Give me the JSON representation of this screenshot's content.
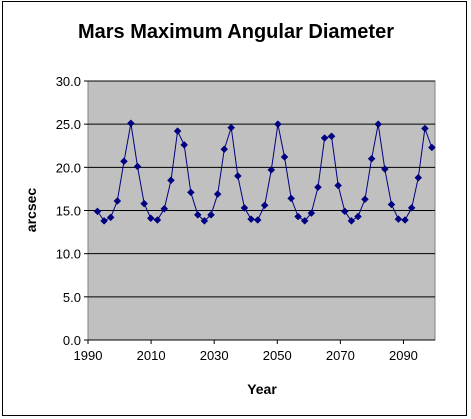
{
  "chart_data": {
    "type": "line",
    "title": "Mars Maximum Angular Diameter",
    "xlabel": "Year",
    "ylabel": "arcsec",
    "xlim": [
      1990,
      2100
    ],
    "ylim": [
      0,
      30
    ],
    "x_ticks": [
      1990,
      2010,
      2030,
      2050,
      2070,
      2090
    ],
    "x_tick_labels": [
      "1990",
      "2010",
      "2030",
      "2050",
      "2070",
      "2090"
    ],
    "y_ticks": [
      0,
      5,
      10,
      15,
      20,
      25,
      30
    ],
    "y_tick_labels": [
      "0.0",
      "5.0",
      "10.0",
      "15.0",
      "20.0",
      "25.0",
      "30.0"
    ],
    "grid": "horizontal",
    "legend": "none",
    "plot_background": "#c0c0c0",
    "series_color": "#000080",
    "marker": "diamond",
    "x": [
      1993.0,
      1995.1,
      1997.2,
      1999.3,
      2001.4,
      2003.6,
      2005.7,
      2007.8,
      2009.9,
      2012.0,
      2014.2,
      2016.3,
      2018.4,
      2020.5,
      2022.6,
      2024.8,
      2026.9,
      2029.0,
      2031.1,
      2033.2,
      2035.4,
      2037.5,
      2039.6,
      2041.7,
      2043.8,
      2046.0,
      2048.1,
      2050.2,
      2052.3,
      2054.4,
      2056.6,
      2058.7,
      2060.8,
      2062.9,
      2065.0,
      2067.2,
      2069.3,
      2071.4,
      2073.5,
      2075.6,
      2077.8,
      2079.9,
      2082.0,
      2084.1,
      2086.2,
      2088.4,
      2090.5,
      2092.6,
      2094.7,
      2096.8,
      2099.0
    ],
    "values": [
      14.9,
      13.8,
      14.2,
      16.1,
      20.7,
      25.1,
      20.1,
      15.8,
      14.1,
      13.9,
      15.2,
      18.5,
      24.2,
      22.6,
      17.1,
      14.5,
      13.8,
      14.5,
      16.9,
      22.1,
      24.6,
      19.0,
      15.3,
      14.0,
      13.9,
      15.6,
      19.7,
      25.0,
      21.2,
      16.4,
      14.3,
      13.8,
      14.7,
      17.7,
      23.4,
      23.6,
      17.9,
      14.9,
      13.8,
      14.3,
      16.3,
      21.0,
      25.0,
      19.8,
      15.7,
      14.0,
      13.9,
      15.3,
      18.8,
      24.5,
      22.3
    ]
  }
}
